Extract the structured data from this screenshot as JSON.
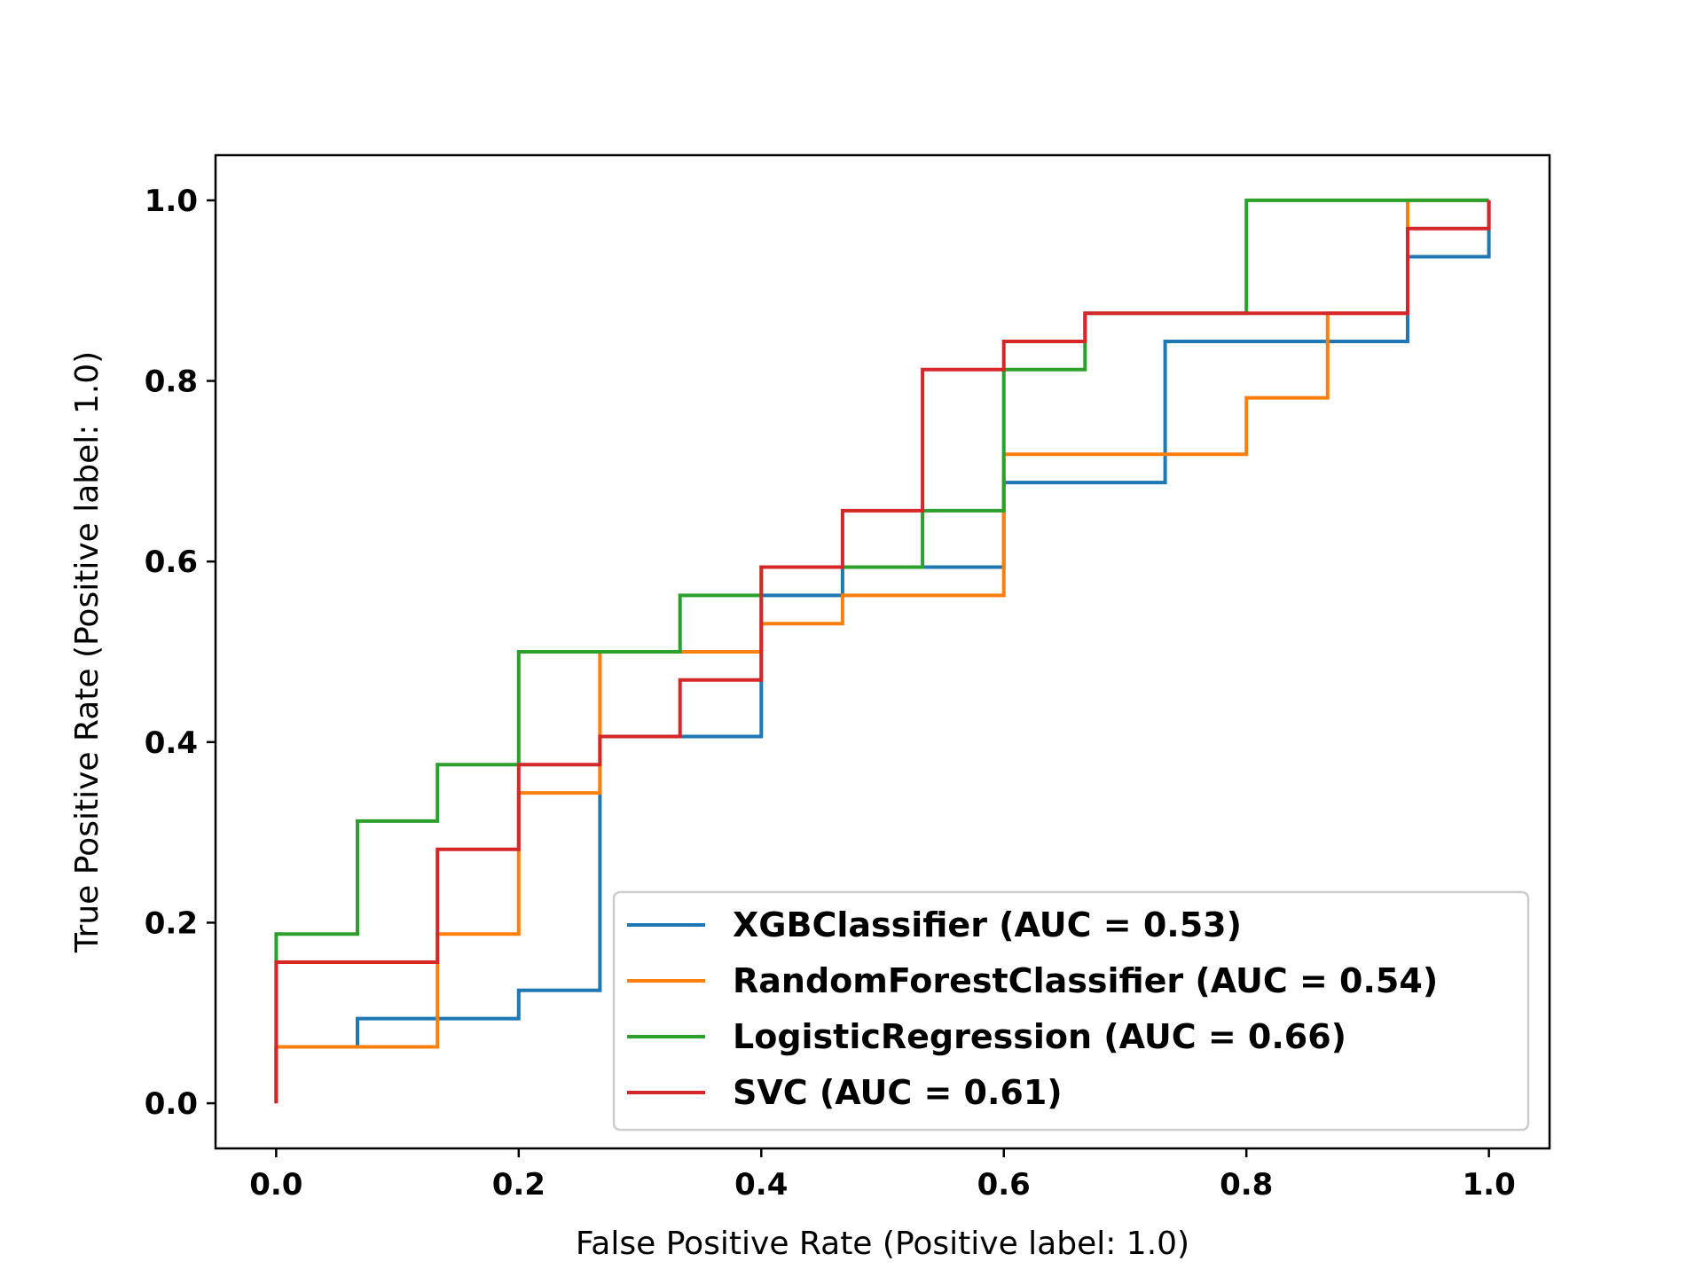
{
  "chart_data": {
    "type": "line",
    "title": "",
    "xlabel": "False Positive Rate (Positive label: 1.0)",
    "ylabel": "True Positive Rate (Positive label: 1.0)",
    "xlim": [
      -0.05,
      1.05
    ],
    "ylim": [
      -0.05,
      1.05
    ],
    "xticks": [
      "0.0",
      "0.2",
      "0.4",
      "0.6",
      "0.8",
      "1.0"
    ],
    "yticks": [
      "0.0",
      "0.2",
      "0.4",
      "0.6",
      "0.8",
      "1.0"
    ],
    "grid": false,
    "legend_position": "lower-right",
    "series": [
      {
        "name": "XGBClassifier (AUC = 0.53)",
        "color": "#1f77b4",
        "x": [
          0,
          0,
          0.067,
          0.067,
          0.2,
          0.2,
          0.267,
          0.267,
          0.333,
          0.333,
          0.4,
          0.4,
          0.467,
          0.467,
          0.6,
          0.6,
          0.733,
          0.733,
          0.933,
          0.933,
          1.0,
          1.0
        ],
        "y": [
          0,
          0.0625,
          0.0625,
          0.09375,
          0.09375,
          0.125,
          0.125,
          0.40625,
          0.40625,
          0.40625,
          0.40625,
          0.5625,
          0.5625,
          0.59375,
          0.59375,
          0.6875,
          0.6875,
          0.84375,
          0.84375,
          0.9375,
          0.9375,
          1.0
        ]
      },
      {
        "name": "RandomForestClassifier (AUC = 0.54)",
        "color": "#ff7f0e",
        "x": [
          0,
          0,
          0.133,
          0.133,
          0.2,
          0.2,
          0.267,
          0.267,
          0.4,
          0.4,
          0.467,
          0.467,
          0.6,
          0.6,
          0.8,
          0.8,
          0.867,
          0.867,
          0.933,
          0.933,
          1.0
        ],
        "y": [
          0,
          0.0625,
          0.0625,
          0.1875,
          0.1875,
          0.34375,
          0.34375,
          0.5,
          0.5,
          0.53125,
          0.53125,
          0.5625,
          0.5625,
          0.71875,
          0.71875,
          0.78125,
          0.78125,
          0.875,
          0.875,
          1.0,
          1.0
        ]
      },
      {
        "name": "LogisticRegression (AUC = 0.66)",
        "color": "#2ca02c",
        "x": [
          0,
          0,
          0.067,
          0.067,
          0.133,
          0.133,
          0.2,
          0.2,
          0.333,
          0.333,
          0.4,
          0.4,
          0.533,
          0.533,
          0.6,
          0.6,
          0.667,
          0.667,
          0.8,
          0.8,
          1.0
        ],
        "y": [
          0,
          0.1875,
          0.1875,
          0.3125,
          0.3125,
          0.375,
          0.375,
          0.5,
          0.5,
          0.5625,
          0.5625,
          0.59375,
          0.59375,
          0.65625,
          0.65625,
          0.8125,
          0.8125,
          0.875,
          0.875,
          1.0,
          1.0
        ]
      },
      {
        "name": "SVC (AUC = 0.61)",
        "color": "#d62728",
        "x": [
          0,
          0,
          0.133,
          0.133,
          0.2,
          0.2,
          0.267,
          0.267,
          0.333,
          0.333,
          0.4,
          0.4,
          0.467,
          0.467,
          0.533,
          0.533,
          0.6,
          0.6,
          0.667,
          0.667,
          0.933,
          0.933,
          1.0,
          1.0
        ],
        "y": [
          0,
          0.15625,
          0.15625,
          0.28125,
          0.28125,
          0.375,
          0.375,
          0.40625,
          0.40625,
          0.46875,
          0.46875,
          0.59375,
          0.59375,
          0.65625,
          0.65625,
          0.8125,
          0.8125,
          0.84375,
          0.84375,
          0.875,
          0.875,
          0.96875,
          0.96875,
          1.0
        ]
      }
    ]
  }
}
